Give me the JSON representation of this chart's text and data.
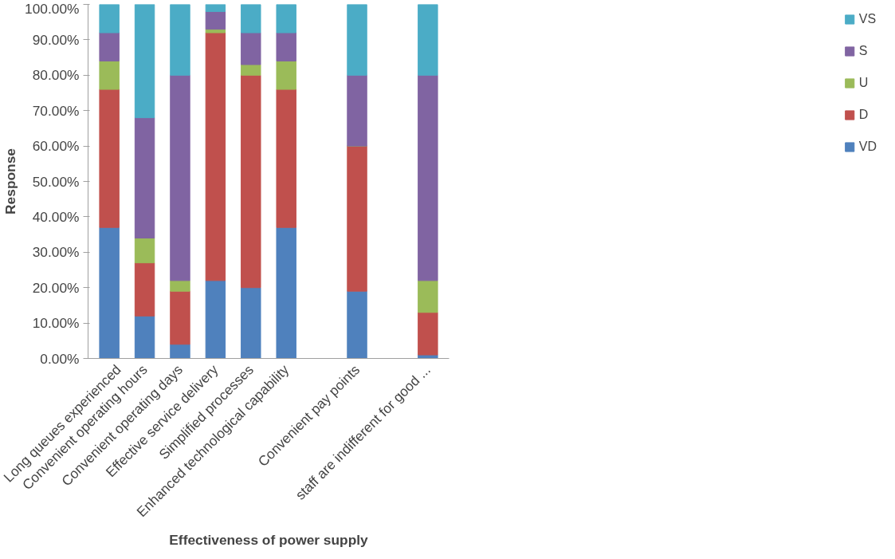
{
  "chart_data": {
    "type": "bar",
    "stacked": true,
    "xlabel": "Effectiveness of power supply",
    "ylabel": "Response",
    "categories": [
      "Long queues experienced",
      "Convenient operating hours",
      "Convenient operating days",
      "Effective service delivery",
      "Simplified processes",
      "Enhanced technological capability",
      null,
      "Convenient pay points",
      null,
      "staff are indifferent for good ..."
    ],
    "series": [
      {
        "name": "VD",
        "color": "#4f81bd",
        "values": [
          37,
          12,
          4,
          22,
          20,
          37,
          null,
          19,
          null,
          1
        ]
      },
      {
        "name": "D",
        "color": "#c0504d",
        "values": [
          39,
          15,
          15,
          70,
          60,
          39,
          null,
          41,
          null,
          12
        ]
      },
      {
        "name": "U",
        "color": "#9bbb59",
        "values": [
          8,
          7,
          3,
          1,
          3,
          8,
          null,
          0,
          null,
          9
        ]
      },
      {
        "name": "S",
        "color": "#8064a2",
        "values": [
          8,
          34,
          58,
          5,
          9,
          8,
          null,
          20,
          null,
          58
        ]
      },
      {
        "name": "VS",
        "color": "#4bacc6",
        "values": [
          8,
          32,
          20,
          2,
          8,
          8,
          null,
          20,
          null,
          20
        ]
      }
    ],
    "ylim": [
      0,
      100
    ],
    "yticks": [
      {
        "value": 0,
        "label": "0.00%"
      },
      {
        "value": 10,
        "label": "10.00%"
      },
      {
        "value": 20,
        "label": "20.00%"
      },
      {
        "value": 30,
        "label": "30.00%"
      },
      {
        "value": 40,
        "label": "40.00%"
      },
      {
        "value": 50,
        "label": "50.00%"
      },
      {
        "value": 60,
        "label": "60.00%"
      },
      {
        "value": 70,
        "label": "70.00%"
      },
      {
        "value": 80,
        "label": "80.00%"
      },
      {
        "value": 90,
        "label": "90.00%"
      },
      {
        "value": 100,
        "label": "100.00%"
      }
    ],
    "legend": "right",
    "grid": false
  }
}
